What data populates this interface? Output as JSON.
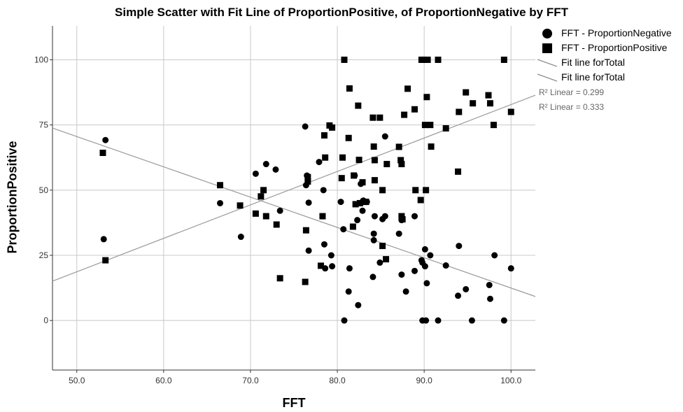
{
  "chart_data": {
    "type": "scatter",
    "title": "Simple Scatter with Fit Line of ProportionPositive,  of ProportionNegative by FFT",
    "xlabel": "FFT",
    "ylabel": "ProportionPositive",
    "xlim": [
      47.2,
      102.8
    ],
    "ylim": [
      -19,
      113
    ],
    "xticks": [
      50,
      60,
      70,
      80,
      90,
      100
    ],
    "xtick_labels": [
      "50.0",
      "60.0",
      "70.0",
      "80.0",
      "90.0",
      "100.0"
    ],
    "yticks": [
      0,
      25,
      50,
      75,
      100
    ],
    "ytick_labels": [
      "0",
      "25",
      "50",
      "75",
      "100"
    ],
    "grid": true,
    "legend": {
      "position": "top-right",
      "items": [
        {
          "label": "FFT - ProportionNegative",
          "symbol": "circle"
        },
        {
          "label": "FFT - ProportionPositive",
          "symbol": "square"
        },
        {
          "label": "Fit line forTotal",
          "symbol": "line-up"
        },
        {
          "label": "Fit line forTotal",
          "symbol": "line-down"
        }
      ]
    },
    "r2_labels": [
      "R² Linear = 0.299",
      "R² Linear = 0.333"
    ],
    "series": [
      {
        "name": "FFT - ProportionNegative",
        "marker": "circle",
        "color": "#000000",
        "points": [
          [
            53.3,
            69.2
          ],
          [
            53.1,
            31.2
          ],
          [
            66.5,
            45.0
          ],
          [
            68.9,
            32.1
          ],
          [
            70.6,
            56.3
          ],
          [
            71.8,
            60.0
          ],
          [
            72.9,
            57.9
          ],
          [
            73.4,
            42.1
          ],
          [
            76.3,
            74.4
          ],
          [
            76.4,
            51.9
          ],
          [
            76.5,
            55.6
          ],
          [
            76.7,
            45.2
          ],
          [
            76.7,
            26.8
          ],
          [
            77.9,
            60.8
          ],
          [
            78.4,
            50.0
          ],
          [
            78.5,
            29.2
          ],
          [
            78.6,
            20.0
          ],
          [
            79.3,
            25.0
          ],
          [
            79.4,
            20.8
          ],
          [
            80.4,
            45.5
          ],
          [
            80.7,
            35.0
          ],
          [
            80.8,
            0.0
          ],
          [
            81.3,
            11.1
          ],
          [
            81.4,
            20.0
          ],
          [
            82.0,
            55.6
          ],
          [
            82.3,
            38.5
          ],
          [
            82.4,
            5.9
          ],
          [
            82.7,
            52.4
          ],
          [
            82.9,
            42.1
          ],
          [
            83.0,
            46.0
          ],
          [
            83.4,
            45.5
          ],
          [
            84.1,
            16.7
          ],
          [
            84.2,
            33.3
          ],
          [
            84.2,
            30.8
          ],
          [
            84.3,
            40.0
          ],
          [
            84.9,
            22.2
          ],
          [
            85.2,
            38.9
          ],
          [
            85.5,
            70.6
          ],
          [
            85.5,
            40.0
          ],
          [
            87.1,
            33.3
          ],
          [
            87.4,
            38.5
          ],
          [
            87.4,
            17.6
          ],
          [
            87.9,
            11.1
          ],
          [
            88.9,
            40.0
          ],
          [
            88.9,
            19.0
          ],
          [
            89.7,
            23.1
          ],
          [
            89.8,
            0.0
          ],
          [
            89.8,
            22.2
          ],
          [
            90.1,
            20.8
          ],
          [
            90.1,
            27.3
          ],
          [
            90.2,
            0.0
          ],
          [
            90.3,
            14.3
          ],
          [
            90.7,
            25.0
          ],
          [
            91.6,
            0.0
          ],
          [
            92.5,
            21.1
          ],
          [
            93.9,
            9.5
          ],
          [
            94.0,
            28.6
          ],
          [
            94.8,
            12.0
          ],
          [
            95.5,
            0.0
          ],
          [
            97.5,
            13.6
          ],
          [
            97.6,
            8.3
          ],
          [
            98.1,
            25.0
          ],
          [
            99.2,
            0.0
          ],
          [
            100.0,
            20.0
          ]
        ]
      },
      {
        "name": "FFT - ProportionPositive",
        "marker": "square",
        "color": "#000000",
        "points": [
          [
            53.0,
            64.3
          ],
          [
            53.3,
            23.1
          ],
          [
            66.5,
            51.9
          ],
          [
            68.8,
            44.1
          ],
          [
            70.6,
            41.0
          ],
          [
            71.2,
            47.6
          ],
          [
            71.5,
            50.0
          ],
          [
            71.8,
            40.0
          ],
          [
            73.0,
            36.8
          ],
          [
            73.4,
            16.2
          ],
          [
            76.3,
            14.8
          ],
          [
            76.4,
            34.6
          ],
          [
            76.6,
            53.3
          ],
          [
            76.6,
            55.0
          ],
          [
            78.1,
            21.0
          ],
          [
            78.3,
            40.0
          ],
          [
            78.5,
            71.0
          ],
          [
            78.6,
            62.5
          ],
          [
            79.1,
            74.8
          ],
          [
            79.4,
            74.0
          ],
          [
            80.5,
            54.6
          ],
          [
            80.6,
            62.5
          ],
          [
            80.8,
            100.0
          ],
          [
            81.3,
            70.0
          ],
          [
            81.4,
            89.0
          ],
          [
            81.8,
            36.0
          ],
          [
            81.9,
            55.6
          ],
          [
            82.1,
            44.6
          ],
          [
            82.4,
            82.4
          ],
          [
            82.5,
            61.6
          ],
          [
            82.6,
            45.0
          ],
          [
            82.9,
            53.0
          ],
          [
            83.0,
            45.5
          ],
          [
            83.3,
            45.5
          ],
          [
            84.1,
            77.8
          ],
          [
            84.2,
            66.7
          ],
          [
            84.3,
            61.5
          ],
          [
            84.3,
            53.8
          ],
          [
            84.9,
            77.8
          ],
          [
            85.2,
            50.0
          ],
          [
            85.2,
            28.6
          ],
          [
            85.6,
            23.5
          ],
          [
            85.7,
            60.0
          ],
          [
            87.1,
            66.6
          ],
          [
            87.3,
            61.5
          ],
          [
            87.4,
            60.0
          ],
          [
            87.4,
            40.0
          ],
          [
            87.5,
            38.8
          ],
          [
            87.7,
            78.9
          ],
          [
            88.1,
            88.9
          ],
          [
            88.9,
            81.0
          ],
          [
            89.0,
            50.0
          ],
          [
            89.6,
            46.2
          ],
          [
            89.7,
            100.0
          ],
          [
            90.0,
            100.0
          ],
          [
            90.1,
            75.0
          ],
          [
            90.2,
            50.0
          ],
          [
            90.3,
            85.7
          ],
          [
            90.4,
            100.0
          ],
          [
            90.7,
            75.0
          ],
          [
            90.8,
            66.7
          ],
          [
            91.6,
            100.0
          ],
          [
            92.5,
            73.7
          ],
          [
            93.9,
            57.1
          ],
          [
            94.0,
            80.0
          ],
          [
            94.8,
            87.5
          ],
          [
            95.6,
            83.3
          ],
          [
            97.4,
            86.4
          ],
          [
            97.6,
            83.3
          ],
          [
            98.0,
            75.0
          ],
          [
            99.2,
            100.0
          ],
          [
            100.0,
            80.0
          ]
        ]
      }
    ],
    "fit_lines": [
      {
        "name": "Fit line forTotal",
        "x": [
          47.2,
          102.8
        ],
        "y": [
          15.1,
          86.4
        ],
        "color": "#999999"
      },
      {
        "name": "Fit line forTotal",
        "x": [
          47.2,
          102.8
        ],
        "y": [
          73.8,
          9.2
        ],
        "color": "#999999"
      }
    ]
  }
}
